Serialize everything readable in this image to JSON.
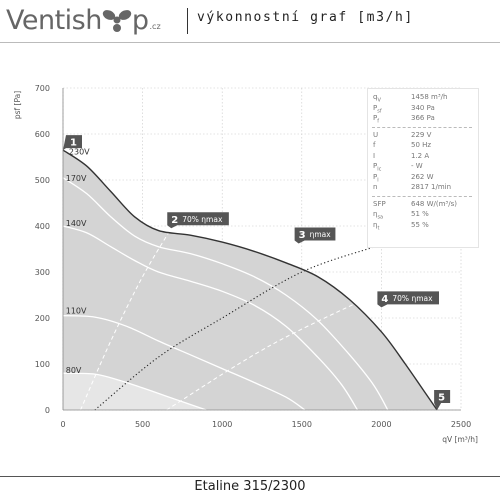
{
  "header": {
    "logo_text_before": "Ventish",
    "logo_text_after": "p",
    "logo_suffix": ".cz",
    "title": "výkonnostní graf [m3/h]"
  },
  "footer": {
    "title": "Etaline 315/2300"
  },
  "info": [
    {
      "key": "q",
      "sub": "V",
      "value": "1458 m³/h"
    },
    {
      "key": "P",
      "sub": "sf",
      "value": "340 Pa"
    },
    {
      "key": "P",
      "sub": "f",
      "value": "366 Pa"
    },
    {
      "key": "U",
      "sub": "",
      "value": "229 V"
    },
    {
      "key": "f",
      "sub": "",
      "value": "50 Hz"
    },
    {
      "key": "I",
      "sub": "",
      "value": "1.2 A"
    },
    {
      "key": "P",
      "sub": "lc",
      "value": "- W"
    },
    {
      "key": "P",
      "sub": "l",
      "value": "262 W"
    },
    {
      "key": "n",
      "sub": "",
      "value": "2817 1/min"
    },
    {
      "key": "SFP",
      "sub": "",
      "value": "648 W/(m³/s)"
    },
    {
      "key": "η",
      "sub": "sa",
      "value": "51 %"
    },
    {
      "key": "η",
      "sub": "t",
      "value": "55 %"
    }
  ],
  "colors": {
    "fill": "#d4d4d4",
    "fill_low": "#e6e6e6",
    "main_curve": "#333333",
    "speed_curves": "#ffffff",
    "grid": "#c8c8c8",
    "marker": "#555555",
    "marker_text": "#ffffff"
  },
  "chart_data": {
    "type": "line",
    "xlabel": "qV [m³/h]",
    "ylabel": "psf [Pa]",
    "xlim": [
      0,
      2500
    ],
    "ylim": [
      0,
      700
    ],
    "xticks": [
      0,
      500,
      1000,
      1500,
      2000,
      2500
    ],
    "yticks": [
      0,
      100,
      200,
      300,
      400,
      500,
      600,
      700
    ],
    "grid": true,
    "series": [
      {
        "name": "230V",
        "values": [
          [
            0,
            565
          ],
          [
            150,
            530
          ],
          [
            300,
            475
          ],
          [
            450,
            420
          ],
          [
            600,
            390
          ],
          [
            800,
            380
          ],
          [
            1000,
            365
          ],
          [
            1200,
            345
          ],
          [
            1400,
            320
          ],
          [
            1600,
            290
          ],
          [
            1800,
            240
          ],
          [
            2000,
            170
          ],
          [
            2150,
            100
          ],
          [
            2270,
            40
          ],
          [
            2350,
            0
          ]
        ]
      },
      {
        "name": "170V",
        "values": [
          [
            0,
            505
          ],
          [
            150,
            470
          ],
          [
            300,
            420
          ],
          [
            450,
            378
          ],
          [
            600,
            355
          ],
          [
            800,
            340
          ],
          [
            1000,
            318
          ],
          [
            1200,
            290
          ],
          [
            1400,
            250
          ],
          [
            1600,
            195
          ],
          [
            1800,
            120
          ],
          [
            1950,
            55
          ],
          [
            2040,
            0
          ]
        ]
      },
      {
        "name": "140V",
        "values": [
          [
            0,
            400
          ],
          [
            150,
            385
          ],
          [
            300,
            355
          ],
          [
            450,
            325
          ],
          [
            600,
            300
          ],
          [
            800,
            280
          ],
          [
            1000,
            258
          ],
          [
            1200,
            228
          ],
          [
            1400,
            182
          ],
          [
            1600,
            115
          ],
          [
            1750,
            55
          ],
          [
            1850,
            0
          ]
        ]
      },
      {
        "name": "110V",
        "values": [
          [
            0,
            205
          ],
          [
            200,
            202
          ],
          [
            400,
            182
          ],
          [
            600,
            150
          ],
          [
            800,
            120
          ],
          [
            1000,
            90
          ],
          [
            1200,
            60
          ],
          [
            1400,
            28
          ],
          [
            1520,
            0
          ]
        ]
      },
      {
        "name": "80V",
        "values": [
          [
            0,
            80
          ],
          [
            200,
            78
          ],
          [
            350,
            65
          ],
          [
            500,
            48
          ],
          [
            650,
            30
          ],
          [
            800,
            12
          ],
          [
            900,
            0
          ]
        ]
      }
    ],
    "efficiency_lines": [
      {
        "style": "dashed-white",
        "values": [
          [
            110,
            0
          ],
          [
            300,
            150
          ],
          [
            500,
            290
          ],
          [
            680,
            395
          ]
        ]
      },
      {
        "style": "dotted-black",
        "values": [
          [
            200,
            0
          ],
          [
            600,
            115
          ],
          [
            1000,
            200
          ],
          [
            1500,
            300
          ],
          [
            1960,
            355
          ]
        ]
      },
      {
        "style": "dashed-white",
        "values": [
          [
            650,
            0
          ],
          [
            1300,
            140
          ],
          [
            2000,
            258
          ]
        ]
      }
    ],
    "markers": [
      {
        "label": "1",
        "q": 0,
        "p": 565
      },
      {
        "label": "2",
        "q": 680,
        "p": 395,
        "text": "70% ηmax"
      },
      {
        "label": "3",
        "q": 1480,
        "p": 362,
        "text": "ηmax"
      },
      {
        "label": "4",
        "q": 2000,
        "p": 223,
        "text": "70% ηmax"
      },
      {
        "label": "5",
        "q": 2350,
        "p": 0
      }
    ],
    "voltage_labels": [
      {
        "text": "230V",
        "q": 100,
        "p": 555
      },
      {
        "text": "170V",
        "q": 80,
        "p": 498
      },
      {
        "text": "140V",
        "q": 80,
        "p": 400
      },
      {
        "text": "110V",
        "q": 80,
        "p": 210
      },
      {
        "text": "80V",
        "q": 80,
        "p": 80
      }
    ]
  }
}
